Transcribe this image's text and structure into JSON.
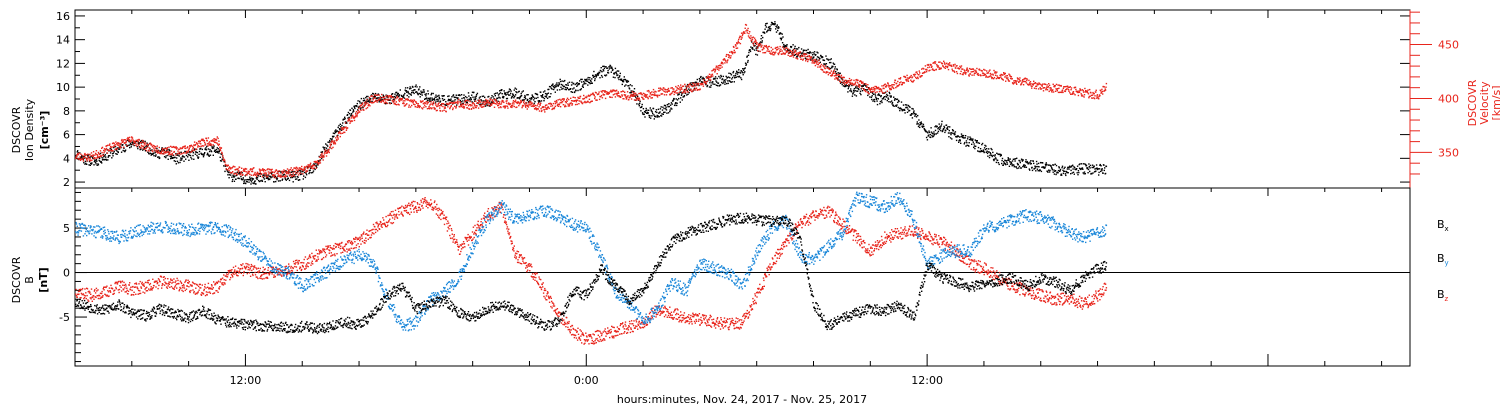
{
  "chart_data": [
    {
      "type": "scatter",
      "panel": "plasma",
      "ylabel_lines": [
        "DSCOVR",
        "Ion Density"
      ],
      "ylabel_units": "[cm⁻³]",
      "y2label_lines": [
        "DSCOVR",
        "Velocity"
      ],
      "y2label_units": "[km/s]",
      "ylim": [
        1.5,
        16.5
      ],
      "y2lim": [
        317,
        482
      ],
      "yticks": [
        2,
        4,
        6,
        8,
        10,
        12,
        14,
        16
      ],
      "y2ticks": [
        350,
        400,
        450
      ],
      "grid": false,
      "colors": {
        "density": "#000000",
        "velocity": "#e8251c"
      },
      "series": [
        {
          "key": "density",
          "color": "#000000",
          "x": [
            0,
            0.3,
            0.7,
            1.0,
            1.5,
            2.0,
            2.5,
            2.9,
            3.0,
            3.2,
            3.5,
            4.0,
            4.5,
            5.0,
            5.4,
            5.7,
            5.9,
            6.3,
            6.6,
            7.0,
            7.4,
            7.7,
            8.0,
            8.4,
            8.7,
            9.0,
            9.5,
            10.0,
            10.5,
            11.0,
            11.5,
            12.0,
            12.5,
            13.0,
            13.5,
            14.0,
            14.5,
            15.0,
            15.5,
            16.0,
            16.5,
            17.0,
            17.5,
            18.0,
            18.4,
            18.8,
            19.2,
            19.6,
            20.0,
            20.4,
            20.8,
            21.2,
            21.6,
            22.0,
            22.5,
            23.0,
            23.5,
            23.8,
            24.0,
            24.3,
            24.6,
            25.0,
            25.4,
            25.8,
            26.2,
            26.6,
            27.0,
            27.4,
            27.8,
            28.2,
            28.6,
            29.0,
            29.5,
            30.0,
            30.5,
            31.0,
            31.5,
            32.0,
            32.5,
            33.0,
            33.5,
            34.0,
            34.5,
            35.0,
            35.5,
            36.0,
            36.3
          ],
          "y": [
            4.5,
            4.0,
            3.8,
            4.2,
            4.8,
            5.4,
            5.0,
            4.4,
            4.6,
            4.5,
            4.0,
            4.3,
            4.6,
            4.8,
            2.6,
            2.5,
            2.4,
            2.3,
            2.4,
            2.5,
            2.6,
            2.5,
            2.7,
            3.2,
            4.5,
            5.5,
            7.3,
            8.6,
            9.2,
            9.0,
            9.5,
            9.8,
            9.2,
            8.9,
            9.0,
            9.2,
            8.8,
            9.4,
            9.6,
            9.0,
            9.3,
            10.3,
            10.0,
            10.5,
            11.2,
            11.6,
            10.8,
            9.8,
            8.0,
            7.8,
            8.2,
            9.0,
            10.0,
            10.5,
            10.5,
            10.8,
            11.2,
            13.8,
            13.0,
            15.0,
            15.4,
            13.5,
            13.0,
            12.8,
            12.5,
            12.0,
            10.5,
            9.6,
            10.0,
            9.0,
            9.3,
            8.5,
            7.8,
            6.0,
            6.8,
            5.8,
            5.4,
            4.8,
            4.0,
            3.7,
            3.5,
            3.3,
            3.1,
            3.0,
            3.2,
            3.1,
            3.2
          ]
        },
        {
          "key": "velocity",
          "color": "#e8251c",
          "x": [
            0,
            0.5,
            1.0,
            1.5,
            2.0,
            2.5,
            3.0,
            3.5,
            4.0,
            4.5,
            5.0,
            5.3,
            5.6,
            6.0,
            6.5,
            7.0,
            7.5,
            8.0,
            8.5,
            9.0,
            9.5,
            10.0,
            10.5,
            11.0,
            11.5,
            12.0,
            12.5,
            13.0,
            13.5,
            14.0,
            14.5,
            15.0,
            15.5,
            16.0,
            16.5,
            17.0,
            17.5,
            18.0,
            18.5,
            19.0,
            19.5,
            20.0,
            20.5,
            21.0,
            21.5,
            22.0,
            22.5,
            23.0,
            23.3,
            23.6,
            24.0,
            24.5,
            25.0,
            25.5,
            26.0,
            26.5,
            27.0,
            27.5,
            28.0,
            28.5,
            29.0,
            29.5,
            30.0,
            30.5,
            31.0,
            31.5,
            32.0,
            32.5,
            33.0,
            33.5,
            34.0,
            34.5,
            35.0,
            35.5,
            36.0,
            36.3
          ],
          "y": [
            347,
            346,
            352,
            358,
            362,
            356,
            353,
            352,
            354,
            360,
            362,
            337,
            334,
            333,
            332,
            331,
            332,
            334,
            340,
            357,
            374,
            390,
            401,
            400,
            398,
            395,
            394,
            392,
            396,
            394,
            397,
            395,
            396,
            394,
            392,
            396,
            398,
            400,
            404,
            406,
            403,
            403,
            406,
            408,
            410,
            412,
            425,
            440,
            450,
            466,
            448,
            445,
            445,
            440,
            435,
            426,
            418,
            415,
            408,
            410,
            416,
            420,
            429,
            432,
            428,
            425,
            424,
            422,
            418,
            415,
            412,
            410,
            408,
            406,
            404,
            413
          ]
        }
      ]
    },
    {
      "type": "scatter",
      "panel": "magnetic-field",
      "ylabel_lines": [
        "DSCOVR",
        "B"
      ],
      "ylabel_units": "[nT]",
      "ylim": [
        -10.5,
        9.5
      ],
      "yticks": [
        -5,
        0,
        5
      ],
      "zero_line": true,
      "grid": false,
      "colors": {
        "bx": "#000000",
        "by": "#1a87d9",
        "bz": "#e8251c"
      },
      "series": [
        {
          "key": "bx",
          "name": "B",
          "subscript": "x",
          "color": "#000000",
          "x": [
            0,
            0.5,
            1.0,
            1.5,
            2.0,
            2.5,
            3.0,
            3.5,
            4.0,
            4.5,
            5.0,
            5.5,
            6.0,
            6.5,
            7.0,
            7.5,
            8.0,
            8.5,
            9.0,
            9.5,
            10.0,
            10.5,
            11.0,
            11.5,
            12.0,
            12.5,
            13.0,
            13.5,
            14.0,
            14.5,
            15.0,
            15.5,
            16.0,
            16.5,
            17.0,
            17.5,
            18.0,
            18.5,
            19.0,
            19.5,
            20.0,
            20.5,
            21.0,
            21.5,
            22.0,
            22.5,
            23.0,
            23.5,
            24.0,
            24.5,
            25.0,
            25.5,
            26.0,
            26.5,
            27.0,
            27.5,
            28.0,
            28.5,
            29.0,
            29.5,
            30.0,
            30.5,
            31.0,
            31.5,
            32.0,
            32.5,
            33.0,
            33.5,
            34.0,
            34.5,
            35.0,
            35.5,
            36.0,
            36.3
          ],
          "y": [
            -3.2,
            -3.8,
            -4.2,
            -3.5,
            -4.5,
            -4.8,
            -4.0,
            -4.6,
            -5.0,
            -4.2,
            -5.2,
            -5.6,
            -5.8,
            -5.9,
            -6.0,
            -6.1,
            -6.0,
            -6.2,
            -6.0,
            -5.5,
            -5.8,
            -4.5,
            -2.5,
            -1.5,
            -4.0,
            -3.5,
            -3.0,
            -4.5,
            -5.0,
            -4.0,
            -3.5,
            -4.2,
            -5.0,
            -6.0,
            -5.5,
            -2.0,
            -2.5,
            0.5,
            -1.5,
            -3.0,
            -2.0,
            1.0,
            3.5,
            4.5,
            5.0,
            5.5,
            6.0,
            6.2,
            6.0,
            5.8,
            6.0,
            4.0,
            -3.5,
            -6.0,
            -5.0,
            -4.5,
            -4.0,
            -4.2,
            -3.5,
            -5.0,
            1.0,
            -0.5,
            -1.0,
            -1.5,
            -1.2,
            -0.8,
            -0.5,
            -1.5,
            -0.5,
            -1.0,
            -2.0,
            -0.5,
            0.5,
            0.8
          ]
        },
        {
          "key": "by",
          "name": "B",
          "subscript": "y",
          "color": "#1a87d9",
          "x": [
            0,
            0.5,
            1.0,
            1.5,
            2.0,
            2.5,
            3.0,
            3.5,
            4.0,
            4.5,
            5.0,
            5.5,
            6.0,
            6.5,
            7.0,
            7.5,
            8.0,
            8.5,
            9.0,
            9.5,
            10.0,
            10.5,
            11.0,
            11.5,
            12.0,
            12.5,
            13.0,
            13.5,
            14.0,
            14.5,
            15.0,
            15.5,
            16.0,
            16.5,
            17.0,
            17.5,
            18.0,
            18.5,
            19.0,
            19.5,
            20.0,
            20.5,
            21.0,
            21.5,
            22.0,
            22.5,
            23.0,
            23.5,
            24.0,
            24.5,
            25.0,
            25.5,
            26.0,
            26.5,
            27.0,
            27.5,
            28.0,
            28.5,
            29.0,
            29.5,
            30.0,
            30.5,
            31.0,
            31.5,
            32.0,
            32.5,
            33.0,
            33.5,
            34.0,
            34.5,
            35.0,
            35.5,
            36.0,
            36.3
          ],
          "y": [
            5.0,
            4.8,
            4.5,
            4.0,
            4.5,
            5.0,
            5.2,
            5.0,
            4.8,
            5.0,
            5.2,
            4.5,
            3.5,
            2.0,
            0.5,
            0.0,
            -1.5,
            -0.5,
            0.5,
            1.5,
            2.0,
            1.0,
            -3.0,
            -6.0,
            -5.5,
            -3.0,
            -2.0,
            -0.5,
            3.0,
            6.0,
            7.5,
            6.0,
            6.5,
            7.0,
            6.5,
            5.5,
            5.0,
            2.0,
            -2.0,
            -3.5,
            -5.5,
            -4.0,
            -1.0,
            -2.0,
            1.0,
            0.5,
            0.0,
            -1.5,
            2.5,
            5.0,
            6.0,
            2.0,
            1.5,
            3.0,
            4.5,
            8.5,
            8.0,
            7.5,
            8.5,
            6.0,
            1.0,
            2.0,
            2.5,
            2.5,
            5.0,
            5.5,
            6.0,
            6.5,
            6.2,
            5.5,
            4.5,
            4.0,
            4.5,
            5.0
          ]
        },
        {
          "key": "bz",
          "name": "B",
          "subscript": "z",
          "color": "#e8251c",
          "x": [
            0,
            0.5,
            1.0,
            1.5,
            2.0,
            2.5,
            3.0,
            3.5,
            4.0,
            4.5,
            5.0,
            5.5,
            6.0,
            6.5,
            7.0,
            7.5,
            8.0,
            8.5,
            9.0,
            9.5,
            10.0,
            10.5,
            11.0,
            11.5,
            12.0,
            12.5,
            13.0,
            13.5,
            14.0,
            14.5,
            15.0,
            15.5,
            16.0,
            16.5,
            17.0,
            17.5,
            18.0,
            18.5,
            19.0,
            19.5,
            20.0,
            20.5,
            21.0,
            21.5,
            22.0,
            22.5,
            23.0,
            23.5,
            24.0,
            24.5,
            25.0,
            25.5,
            26.0,
            26.5,
            27.0,
            27.5,
            28.0,
            28.5,
            29.0,
            29.5,
            30.0,
            30.5,
            31.0,
            31.5,
            32.0,
            32.5,
            33.0,
            33.5,
            34.0,
            34.5,
            35.0,
            35.5,
            36.0,
            36.3
          ],
          "y": [
            -2.0,
            -2.5,
            -2.2,
            -1.5,
            -1.8,
            -1.5,
            -1.0,
            -1.2,
            -1.5,
            -2.0,
            -1.5,
            0.0,
            0.5,
            0.0,
            0.2,
            0.5,
            1.0,
            2.0,
            2.5,
            3.0,
            3.5,
            5.0,
            6.0,
            7.0,
            7.5,
            8.0,
            6.0,
            2.5,
            4.5,
            6.5,
            7.5,
            2.0,
            0.5,
            -2.0,
            -4.5,
            -6.5,
            -7.5,
            -7.0,
            -6.5,
            -6.0,
            -5.5,
            -4.0,
            -4.5,
            -5.0,
            -5.2,
            -5.5,
            -5.8,
            -5.5,
            -2.5,
            1.0,
            3.5,
            5.5,
            6.5,
            7.0,
            5.5,
            4.0,
            2.5,
            4.0,
            4.5,
            4.8,
            4.0,
            3.5,
            2.5,
            1.0,
            0.5,
            -0.5,
            -1.5,
            -2.0,
            -2.5,
            -3.0,
            -2.8,
            -3.5,
            -2.5,
            -1.5
          ]
        }
      ]
    }
  ],
  "x_axis": {
    "tick_labels": [
      {
        "hour": 6,
        "label": "12:00"
      },
      {
        "hour": 18,
        "label": "0:00"
      },
      {
        "hour": 30,
        "label": "12:00"
      }
    ],
    "title": "hours:minutes, Nov. 24, 2017 - Nov. 25, 2017"
  }
}
